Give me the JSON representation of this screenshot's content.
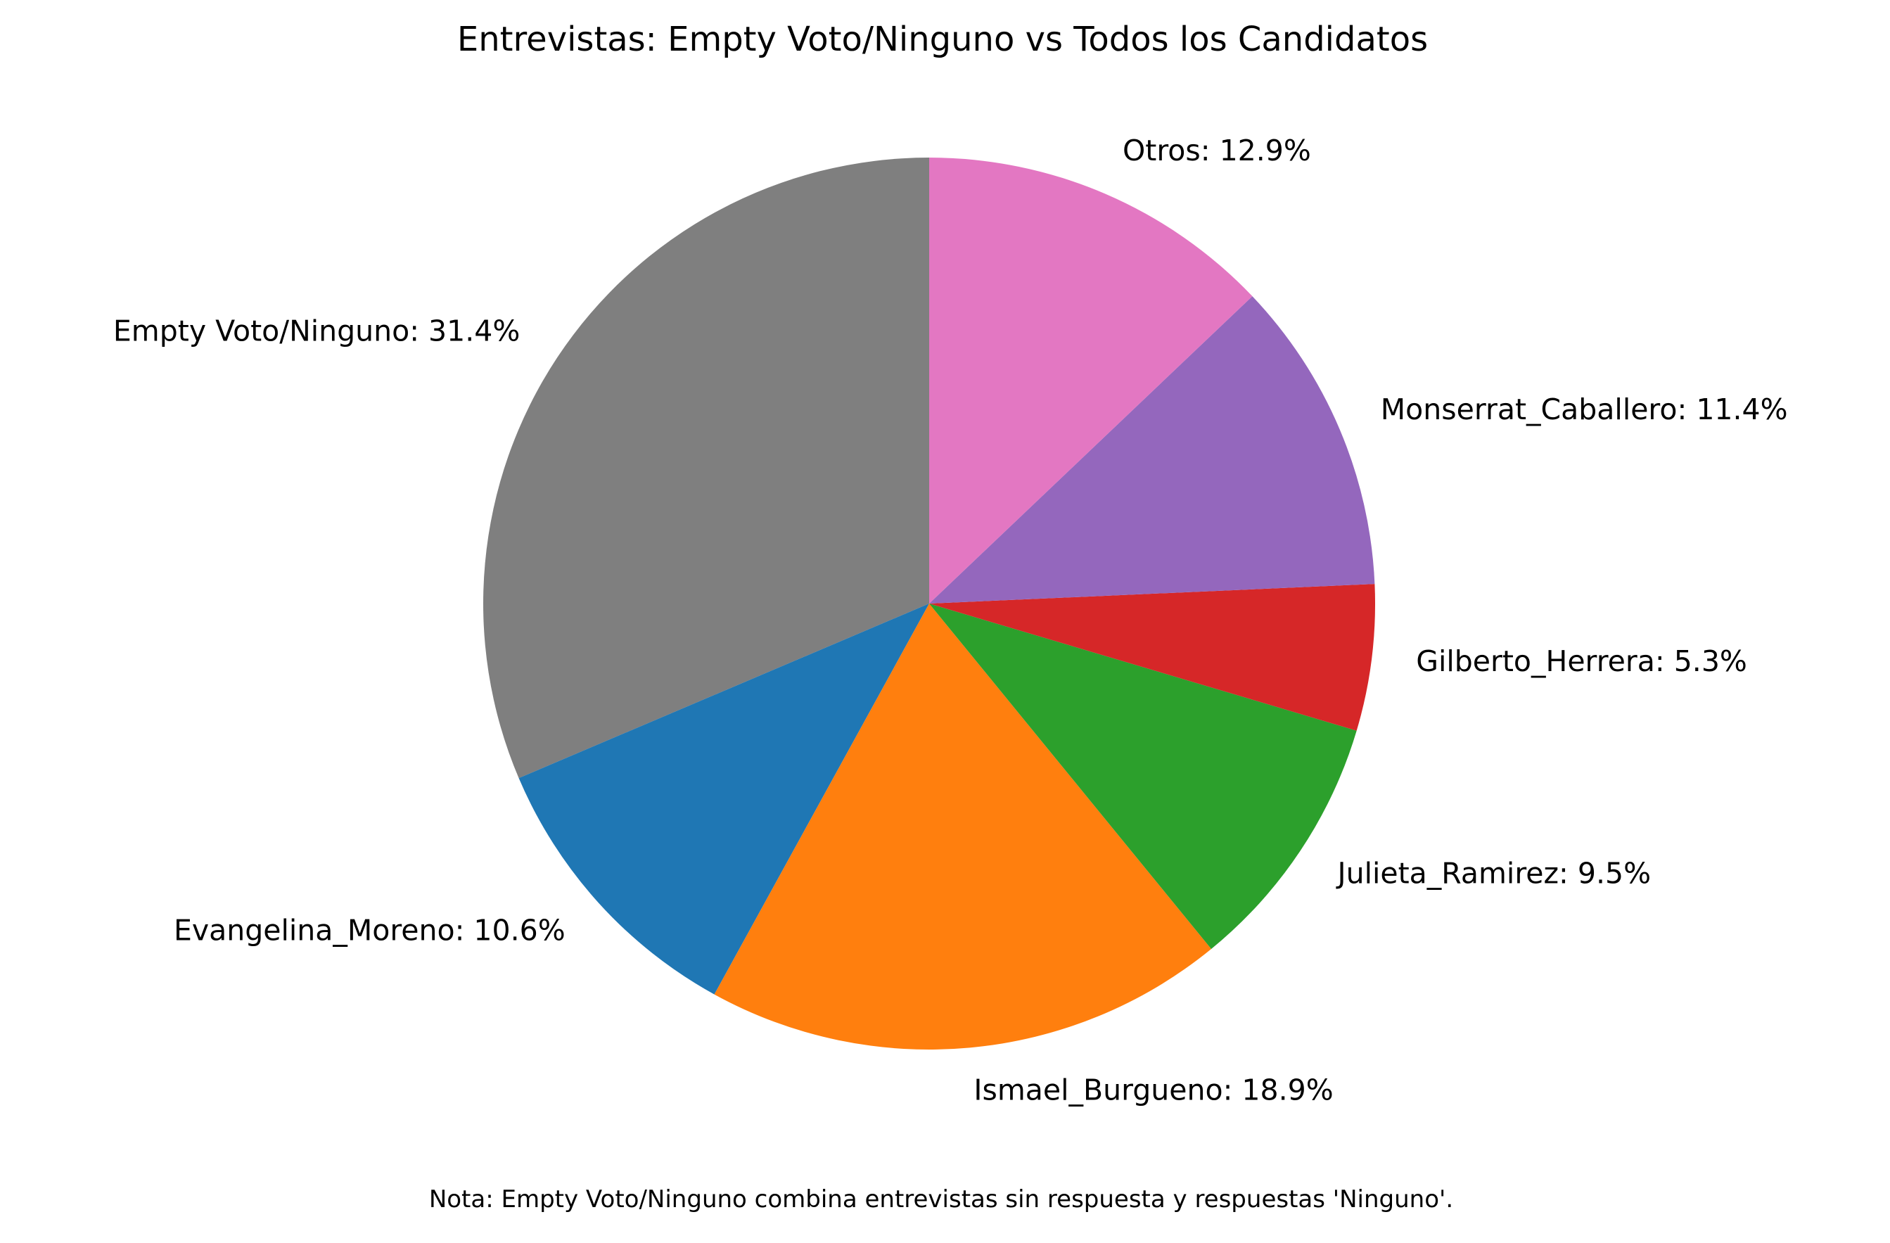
{
  "chart_data": {
    "type": "pie",
    "title": "Entrevistas: Empty Voto/Ninguno vs Todos los Candidatos",
    "start_angle_deg": 90,
    "direction": "counterclockwise",
    "slices": [
      {
        "label": "Empty Voto/Ninguno",
        "value": 31.4,
        "display": "31.4%",
        "color": "#7f7f7f"
      },
      {
        "label": "Evangelina_Moreno",
        "value": 10.6,
        "display": "10.6%",
        "color": "#1f77b4"
      },
      {
        "label": "Ismael_Burgueno",
        "value": 18.9,
        "display": "18.9%",
        "color": "#ff7f0e"
      },
      {
        "label": "Julieta_Ramirez",
        "value": 9.5,
        "display": "9.5%",
        "color": "#2ca02c"
      },
      {
        "label": "Gilberto_Herrera",
        "value": 5.3,
        "display": "5.3%",
        "color": "#d62728"
      },
      {
        "label": "Monserrat_Caballero",
        "value": 11.4,
        "display": "11.4%",
        "color": "#9467bd"
      },
      {
        "label": "Otros",
        "value": 12.9,
        "display": "12.9%",
        "color": "#e377c2"
      }
    ],
    "footnote": "Nota: Empty Voto/Ninguno combina entrevistas sin respuesta y respuestas 'Ninguno'."
  }
}
